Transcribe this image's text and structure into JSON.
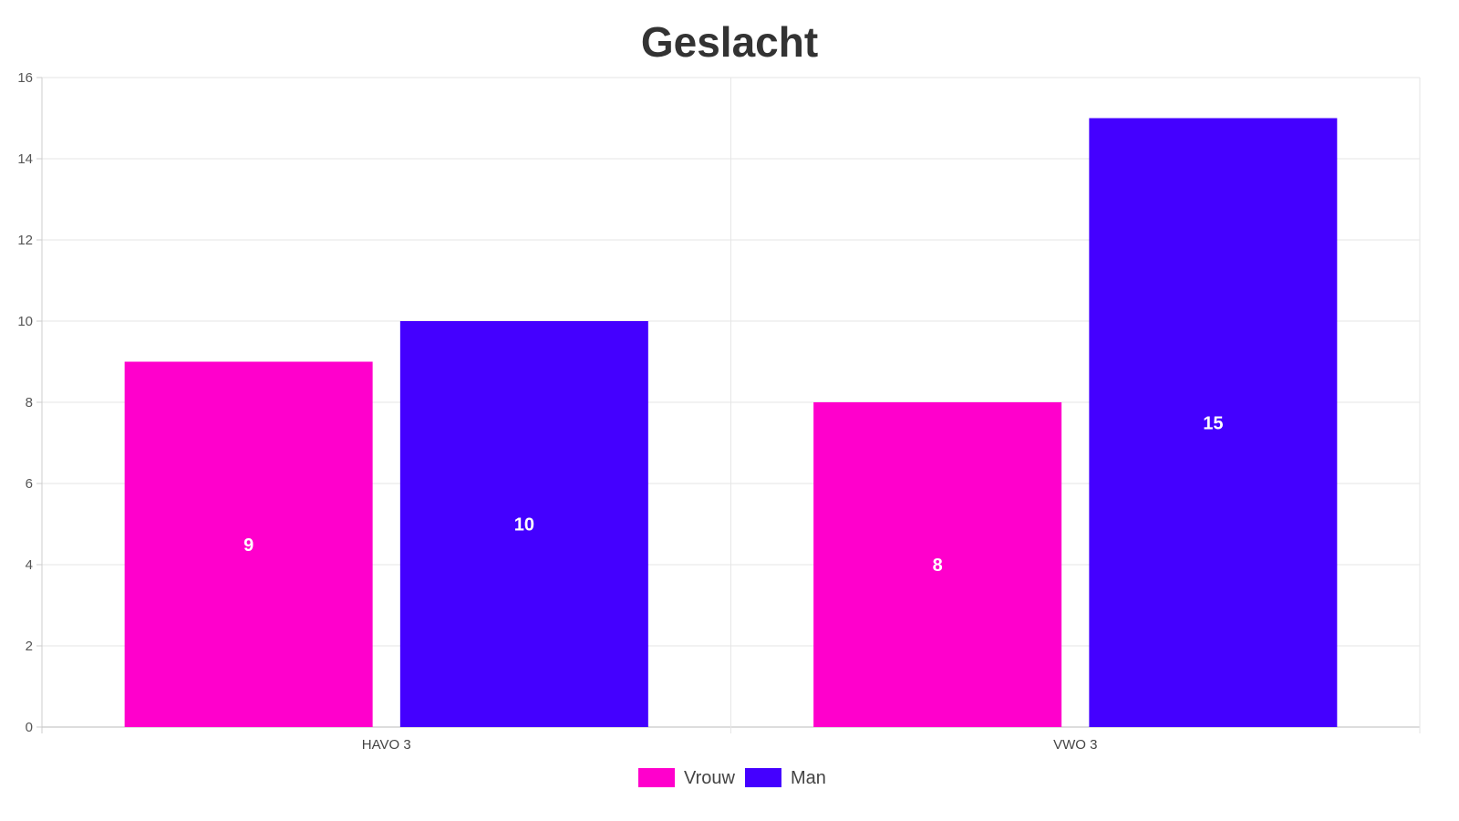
{
  "chart_data": {
    "type": "bar",
    "title": "Geslacht",
    "categories": [
      "HAVO 3",
      "VWO 3"
    ],
    "series": [
      {
        "name": "Vrouw",
        "values": [
          9,
          8
        ],
        "color": "#ff00cc"
      },
      {
        "name": "Man",
        "values": [
          10,
          15
        ],
        "color": "#4400ff"
      }
    ],
    "ylim": [
      0,
      16
    ],
    "yticks": [
      0,
      2,
      4,
      6,
      8,
      10,
      12,
      14,
      16
    ],
    "grid": true,
    "legend_position": "bottom",
    "data_labels": true
  }
}
